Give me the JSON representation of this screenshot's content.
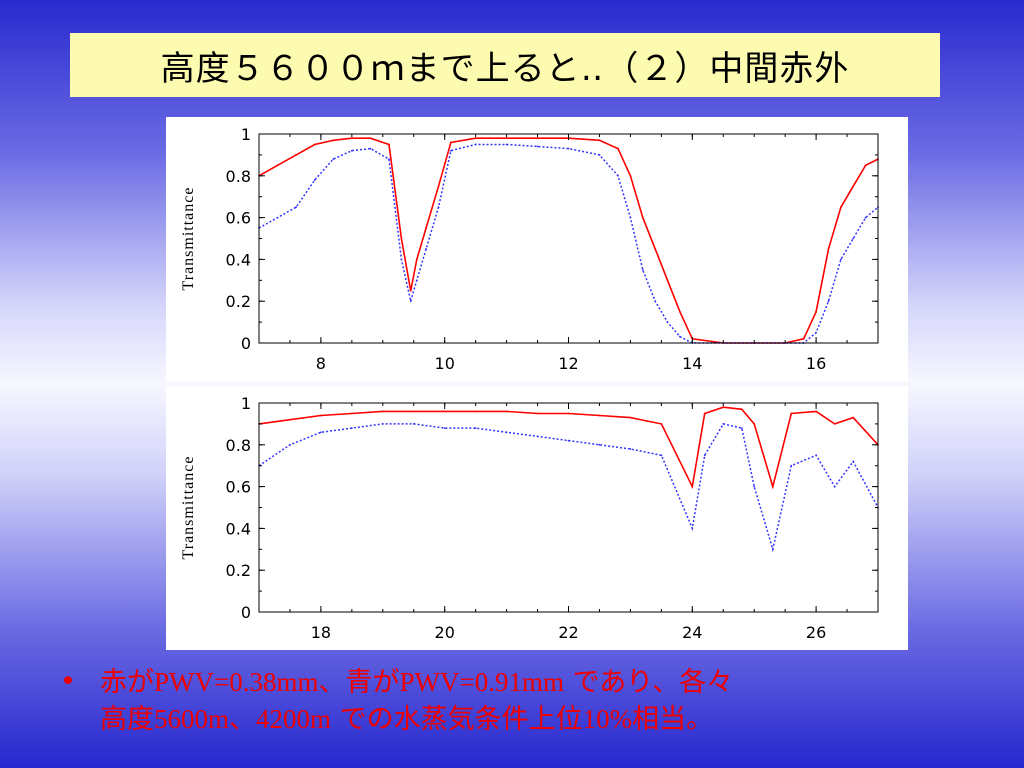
{
  "slide": {
    "title": "高度５６００ｍまで上ると‥（２）中間赤外",
    "bullet_marker": "•",
    "bullet_line1_a": "赤が",
    "bullet_line1_b": "PWV=0.38mm",
    "bullet_line1_c": "、青が",
    "bullet_line1_d": "PWV=0.91mm",
    "bullet_line1_e": " であり、各々",
    "bullet_line2_a": "高度",
    "bullet_line2_b": "5600m",
    "bullet_line2_c": "、",
    "bullet_line2_d": "4200m",
    "bullet_line2_e": " での水蒸気条件上位",
    "bullet_line2_f": "10%",
    "bullet_line2_g": "相当。"
  },
  "colors": {
    "series_red": "#ff0000",
    "series_blue": "#3333ff",
    "title_background": "#fdfbb0",
    "bullet_text": "#ee0000"
  },
  "chart_data": [
    {
      "type": "line",
      "title": "",
      "xlabel": "",
      "ylabel": "Transmittance",
      "xlim": [
        7,
        17
      ],
      "ylim": [
        0,
        1
      ],
      "xticks": [
        8,
        10,
        12,
        14,
        16
      ],
      "yticks": [
        "0",
        "0.2",
        "0.4",
        "0.6",
        "0.8",
        "1"
      ],
      "grid": false,
      "series": [
        {
          "style": "solid",
          "color": "red",
          "x": [
            7.0,
            7.3,
            7.6,
            7.9,
            8.2,
            8.5,
            8.8,
            9.1,
            9.3,
            9.45,
            9.55,
            9.7,
            9.9,
            10.1,
            10.5,
            11.0,
            11.5,
            12.0,
            12.5,
            12.8,
            13.0,
            13.2,
            13.4,
            13.6,
            13.8,
            14.0,
            14.5,
            15.0,
            15.5,
            15.8,
            16.0,
            16.2,
            16.4,
            16.6,
            16.8,
            17.0
          ],
          "y": [
            0.8,
            0.85,
            0.9,
            0.95,
            0.97,
            0.98,
            0.98,
            0.95,
            0.5,
            0.25,
            0.4,
            0.55,
            0.75,
            0.96,
            0.98,
            0.98,
            0.98,
            0.98,
            0.97,
            0.93,
            0.8,
            0.6,
            0.45,
            0.3,
            0.15,
            0.02,
            0.0,
            0.0,
            0.0,
            0.02,
            0.15,
            0.45,
            0.65,
            0.75,
            0.85,
            0.88
          ]
        },
        {
          "style": "dotted",
          "color": "blue",
          "x": [
            7.0,
            7.3,
            7.6,
            7.9,
            8.2,
            8.5,
            8.8,
            9.1,
            9.3,
            9.45,
            9.55,
            9.7,
            9.9,
            10.1,
            10.5,
            11.0,
            11.5,
            12.0,
            12.5,
            12.8,
            13.0,
            13.2,
            13.4,
            13.6,
            13.8,
            14.0,
            14.5,
            15.0,
            15.5,
            15.8,
            16.0,
            16.2,
            16.4,
            16.6,
            16.8,
            17.0
          ],
          "y": [
            0.55,
            0.6,
            0.65,
            0.78,
            0.88,
            0.92,
            0.93,
            0.88,
            0.4,
            0.2,
            0.3,
            0.45,
            0.65,
            0.92,
            0.95,
            0.95,
            0.94,
            0.93,
            0.9,
            0.8,
            0.6,
            0.35,
            0.2,
            0.1,
            0.03,
            0.0,
            0.0,
            0.0,
            0.0,
            0.0,
            0.05,
            0.2,
            0.4,
            0.5,
            0.6,
            0.65
          ]
        }
      ]
    },
    {
      "type": "line",
      "title": "",
      "xlabel": "",
      "ylabel": "Transmittance",
      "xlim": [
        17,
        27
      ],
      "ylim": [
        0,
        1
      ],
      "xticks": [
        18,
        20,
        22,
        24,
        26
      ],
      "yticks": [
        "0",
        "0.2",
        "0.4",
        "0.6",
        "0.8",
        "1"
      ],
      "grid": false,
      "series": [
        {
          "style": "solid",
          "color": "red",
          "x": [
            17.0,
            17.5,
            18.0,
            18.5,
            19.0,
            19.5,
            20.0,
            20.5,
            21.0,
            21.5,
            22.0,
            22.5,
            23.0,
            23.5,
            24.0,
            24.2,
            24.5,
            24.8,
            25.0,
            25.3,
            25.6,
            26.0,
            26.3,
            26.6,
            27.0
          ],
          "y": [
            0.9,
            0.92,
            0.94,
            0.95,
            0.96,
            0.96,
            0.96,
            0.96,
            0.96,
            0.95,
            0.95,
            0.94,
            0.93,
            0.9,
            0.6,
            0.95,
            0.98,
            0.97,
            0.9,
            0.6,
            0.95,
            0.96,
            0.9,
            0.93,
            0.8
          ]
        },
        {
          "style": "dotted",
          "color": "blue",
          "x": [
            17.0,
            17.5,
            18.0,
            18.5,
            19.0,
            19.5,
            20.0,
            20.5,
            21.0,
            21.5,
            22.0,
            22.5,
            23.0,
            23.5,
            24.0,
            24.2,
            24.5,
            24.8,
            25.0,
            25.3,
            25.6,
            26.0,
            26.3,
            26.6,
            27.0
          ],
          "y": [
            0.7,
            0.8,
            0.86,
            0.88,
            0.9,
            0.9,
            0.88,
            0.88,
            0.86,
            0.84,
            0.82,
            0.8,
            0.78,
            0.75,
            0.4,
            0.75,
            0.9,
            0.88,
            0.6,
            0.3,
            0.7,
            0.75,
            0.6,
            0.72,
            0.5
          ]
        }
      ]
    }
  ]
}
